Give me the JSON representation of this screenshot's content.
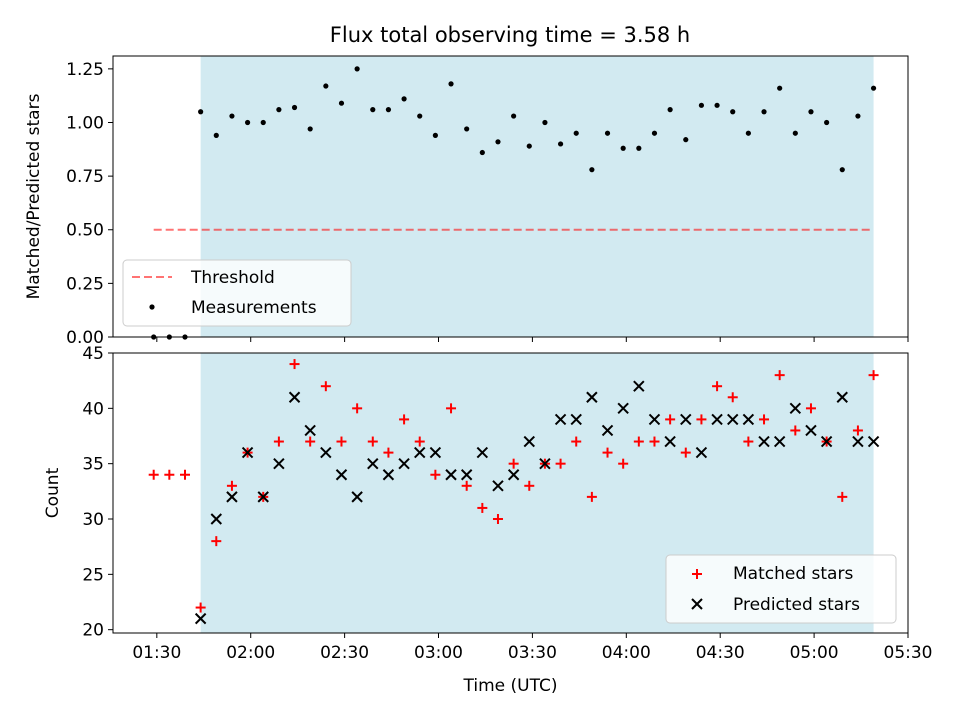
{
  "figure": {
    "title": "Flux total observing time = 3.58 h"
  },
  "colors": {
    "shade": "#add8e6",
    "threshold": "#ff0000",
    "measurement": "#000000",
    "matched": "#ff0000",
    "predicted": "#000000"
  },
  "chart_data": [
    {
      "type": "scatter",
      "title": "Flux total observing time = 3.58 h",
      "xlabel": "",
      "ylabel": "Matched/Predicted stars",
      "xlim": [
        "01:16",
        "05:30"
      ],
      "ylim": [
        0,
        1.31
      ],
      "yticks": [
        "0.00",
        "0.25",
        "0.50",
        "0.75",
        "1.00",
        "1.25"
      ],
      "shaded_interval": [
        "01:44",
        "05:19"
      ],
      "threshold": {
        "name": "Threshold",
        "value": 0.5,
        "x_range": [
          "01:29",
          "05:19"
        ],
        "style": "dashed"
      },
      "legend": {
        "position": "lower-left",
        "entries": [
          "Threshold",
          "Measurements"
        ]
      },
      "series": [
        {
          "name": "Measurements",
          "marker": "dot",
          "points": [
            [
              "01:29",
              0.0
            ],
            [
              "01:34",
              0.0
            ],
            [
              "01:39",
              0.0
            ],
            [
              "01:44",
              1.05
            ],
            [
              "01:49",
              0.94
            ],
            [
              "01:54",
              1.03
            ],
            [
              "01:59",
              1.0
            ],
            [
              "02:04",
              1.0
            ],
            [
              "02:09",
              1.06
            ],
            [
              "02:14",
              1.07
            ],
            [
              "02:19",
              0.97
            ],
            [
              "02:24",
              1.17
            ],
            [
              "02:29",
              1.09
            ],
            [
              "02:34",
              1.25
            ],
            [
              "02:39",
              1.06
            ],
            [
              "02:44",
              1.06
            ],
            [
              "02:49",
              1.11
            ],
            [
              "02:54",
              1.03
            ],
            [
              "02:59",
              0.94
            ],
            [
              "03:04",
              1.18
            ],
            [
              "03:09",
              0.97
            ],
            [
              "03:14",
              0.86
            ],
            [
              "03:19",
              0.91
            ],
            [
              "03:24",
              1.03
            ],
            [
              "03:29",
              0.89
            ],
            [
              "03:34",
              1.0
            ],
            [
              "03:39",
              0.9
            ],
            [
              "03:44",
              0.95
            ],
            [
              "03:49",
              0.78
            ],
            [
              "03:54",
              0.95
            ],
            [
              "03:59",
              0.88
            ],
            [
              "04:04",
              0.88
            ],
            [
              "04:09",
              0.95
            ],
            [
              "04:14",
              1.06
            ],
            [
              "04:19",
              0.92
            ],
            [
              "04:24",
              1.08
            ],
            [
              "04:29",
              1.08
            ],
            [
              "04:34",
              1.05
            ],
            [
              "04:39",
              0.95
            ],
            [
              "04:44",
              1.05
            ],
            [
              "04:49",
              1.16
            ],
            [
              "04:54",
              0.95
            ],
            [
              "04:59",
              1.05
            ],
            [
              "05:04",
              1.0
            ],
            [
              "05:09",
              0.78
            ],
            [
              "05:14",
              1.03
            ],
            [
              "05:19",
              1.16
            ]
          ]
        }
      ]
    },
    {
      "type": "scatter",
      "title": "",
      "xlabel": "Time (UTC)",
      "ylabel": "Count",
      "xlim": [
        "01:16",
        "05:30"
      ],
      "ylim": [
        19.7,
        45
      ],
      "yticks": [
        "20",
        "25",
        "30",
        "35",
        "40",
        "45"
      ],
      "xticks": [
        "01:30",
        "02:00",
        "02:30",
        "03:00",
        "03:30",
        "04:00",
        "04:30",
        "05:00",
        "05:30"
      ],
      "shaded_interval": [
        "01:44",
        "05:19"
      ],
      "legend": {
        "position": "lower-right",
        "entries": [
          "Matched stars",
          "Predicted stars"
        ]
      },
      "series": [
        {
          "name": "Matched stars",
          "marker": "plus",
          "points": [
            [
              "01:29",
              34
            ],
            [
              "01:34",
              34
            ],
            [
              "01:39",
              34
            ],
            [
              "01:44",
              22
            ],
            [
              "01:49",
              28
            ],
            [
              "01:54",
              33
            ],
            [
              "01:59",
              36
            ],
            [
              "02:04",
              32
            ],
            [
              "02:09",
              37
            ],
            [
              "02:14",
              44
            ],
            [
              "02:19",
              37
            ],
            [
              "02:24",
              42
            ],
            [
              "02:29",
              37
            ],
            [
              "02:34",
              40
            ],
            [
              "02:39",
              37
            ],
            [
              "02:44",
              36
            ],
            [
              "02:49",
              39
            ],
            [
              "02:54",
              37
            ],
            [
              "02:59",
              34
            ],
            [
              "03:04",
              40
            ],
            [
              "03:09",
              33
            ],
            [
              "03:14",
              31
            ],
            [
              "03:19",
              30
            ],
            [
              "03:24",
              35
            ],
            [
              "03:29",
              33
            ],
            [
              "03:34",
              35
            ],
            [
              "03:39",
              35
            ],
            [
              "03:44",
              37
            ],
            [
              "03:49",
              32
            ],
            [
              "03:54",
              36
            ],
            [
              "03:59",
              35
            ],
            [
              "04:04",
              37
            ],
            [
              "04:09",
              37
            ],
            [
              "04:14",
              39
            ],
            [
              "04:19",
              36
            ],
            [
              "04:24",
              39
            ],
            [
              "04:29",
              42
            ],
            [
              "04:34",
              41
            ],
            [
              "04:39",
              37
            ],
            [
              "04:44",
              39
            ],
            [
              "04:49",
              43
            ],
            [
              "04:54",
              38
            ],
            [
              "04:59",
              40
            ],
            [
              "05:04",
              37
            ],
            [
              "05:09",
              32
            ],
            [
              "05:14",
              38
            ],
            [
              "05:19",
              43
            ]
          ]
        },
        {
          "name": "Predicted stars",
          "marker": "x",
          "points": [
            [
              "01:44",
              21
            ],
            [
              "01:49",
              30
            ],
            [
              "01:54",
              32
            ],
            [
              "01:59",
              36
            ],
            [
              "02:04",
              32
            ],
            [
              "02:09",
              35
            ],
            [
              "02:14",
              41
            ],
            [
              "02:19",
              38
            ],
            [
              "02:24",
              36
            ],
            [
              "02:29",
              34
            ],
            [
              "02:34",
              32
            ],
            [
              "02:39",
              35
            ],
            [
              "02:44",
              34
            ],
            [
              "02:49",
              35
            ],
            [
              "02:54",
              36
            ],
            [
              "02:59",
              36
            ],
            [
              "03:04",
              34
            ],
            [
              "03:09",
              34
            ],
            [
              "03:14",
              36
            ],
            [
              "03:19",
              33
            ],
            [
              "03:24",
              34
            ],
            [
              "03:29",
              37
            ],
            [
              "03:34",
              35
            ],
            [
              "03:39",
              39
            ],
            [
              "03:44",
              39
            ],
            [
              "03:49",
              41
            ],
            [
              "03:54",
              38
            ],
            [
              "03:59",
              40
            ],
            [
              "04:04",
              42
            ],
            [
              "04:09",
              39
            ],
            [
              "04:14",
              37
            ],
            [
              "04:19",
              39
            ],
            [
              "04:24",
              36
            ],
            [
              "04:29",
              39
            ],
            [
              "04:34",
              39
            ],
            [
              "04:39",
              39
            ],
            [
              "04:44",
              37
            ],
            [
              "04:49",
              37
            ],
            [
              "04:54",
              40
            ],
            [
              "04:59",
              38
            ],
            [
              "05:04",
              37
            ],
            [
              "05:09",
              41
            ],
            [
              "05:14",
              37
            ],
            [
              "05:19",
              37
            ]
          ]
        }
      ]
    }
  ]
}
